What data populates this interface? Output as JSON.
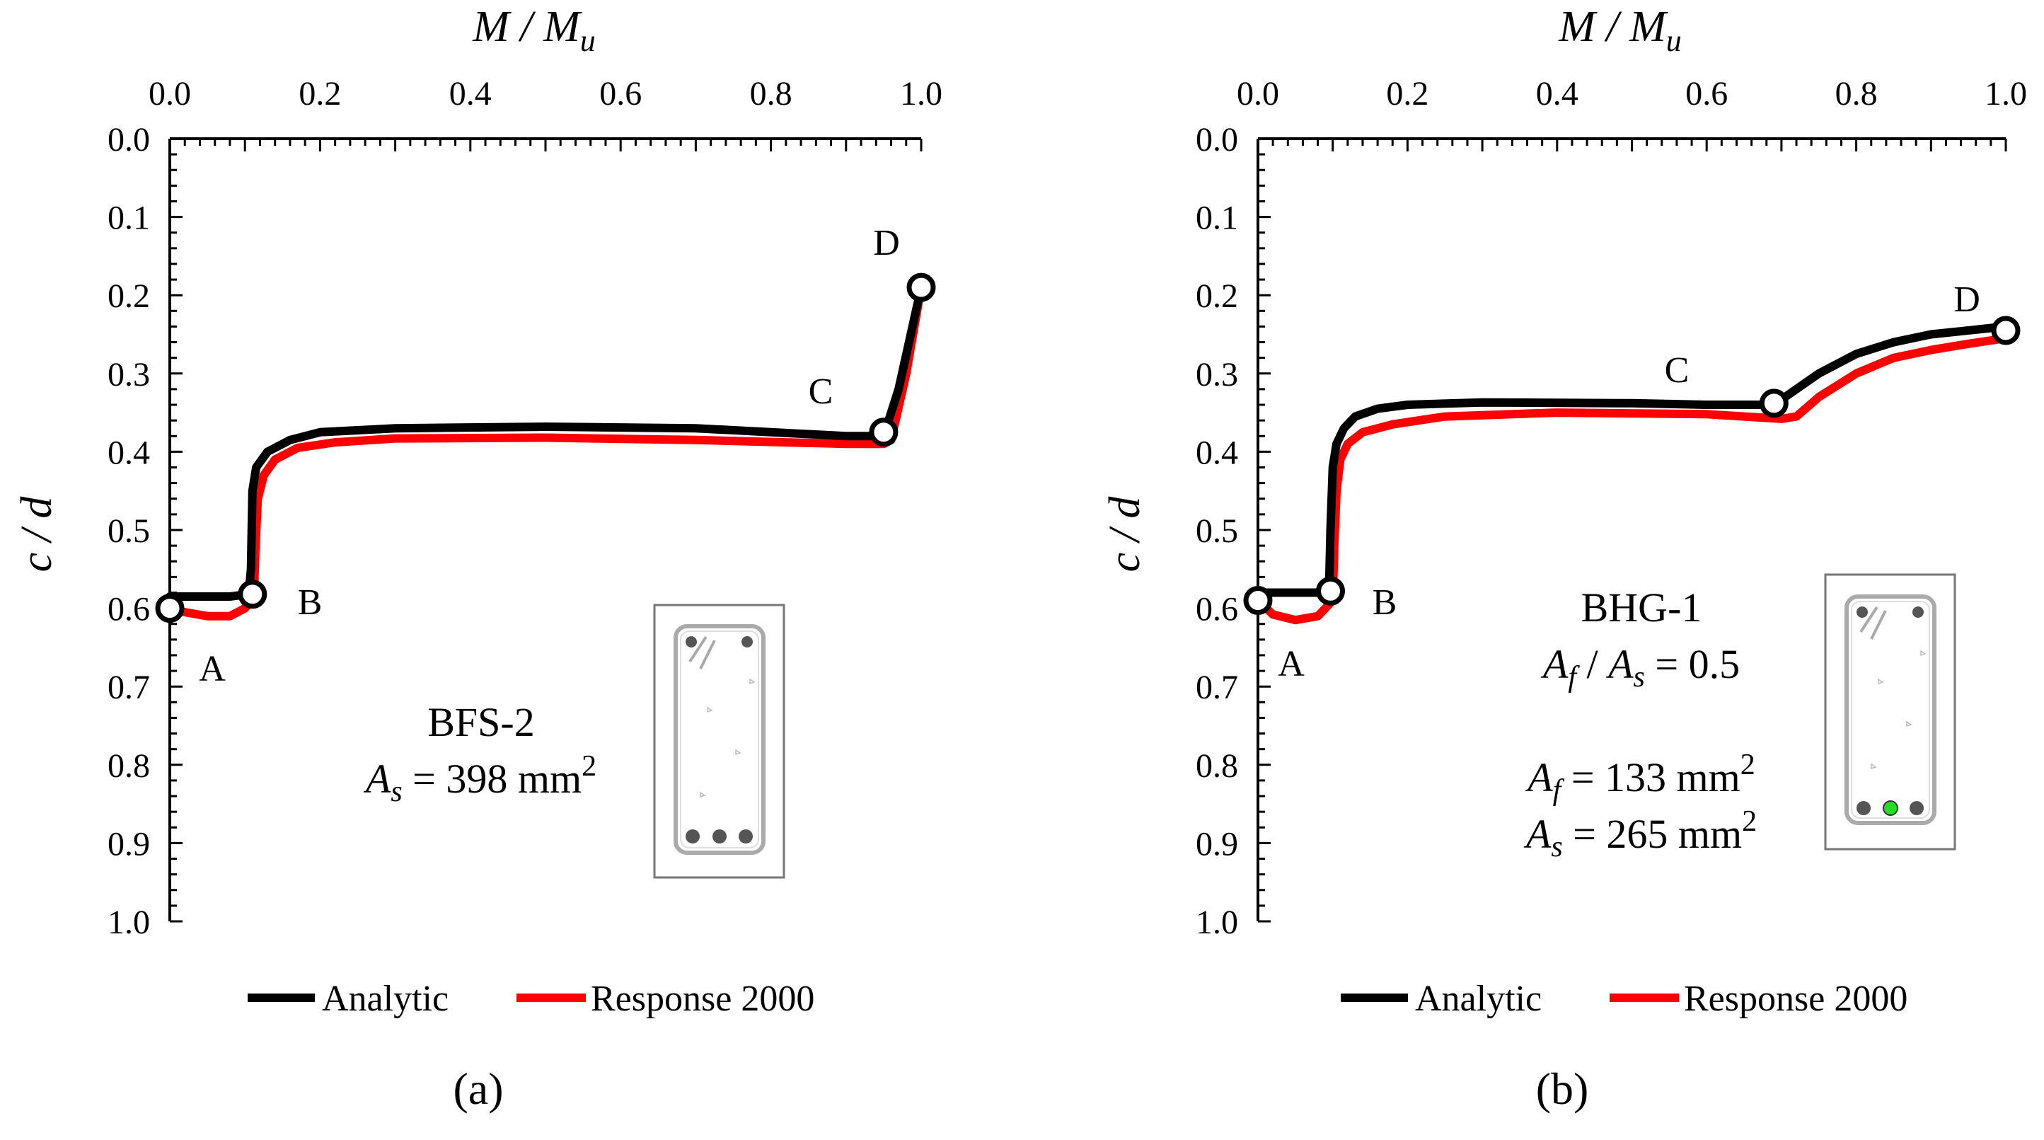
{
  "chart_data": [
    {
      "type": "line",
      "panel_label": "(a)",
      "xlabel": "M / M",
      "xlabel_sub": "u",
      "ylabel": "c / d",
      "xlim": [
        0,
        1
      ],
      "ylim": [
        0,
        1
      ],
      "y_inverted": true,
      "x_axis_position": "top",
      "xticks": [
        "0.0",
        "0.2",
        "0.4",
        "0.6",
        "0.8",
        "1.0"
      ],
      "yticks": [
        "0.0",
        "0.1",
        "0.2",
        "0.3",
        "0.4",
        "0.5",
        "0.6",
        "0.7",
        "0.8",
        "0.9",
        "1.0"
      ],
      "legend_position": "bottom",
      "series": [
        {
          "name": "Analytic",
          "color": "#000000",
          "x": [
            0.0,
            0.0,
            0.04,
            0.08,
            0.105,
            0.108,
            0.11,
            0.115,
            0.13,
            0.16,
            0.2,
            0.3,
            0.5,
            0.7,
            0.9,
            0.95,
            0.97,
            1.0
          ],
          "y": [
            0.6,
            0.585,
            0.585,
            0.585,
            0.582,
            0.55,
            0.45,
            0.42,
            0.4,
            0.385,
            0.375,
            0.37,
            0.368,
            0.37,
            0.38,
            0.38,
            0.32,
            0.19
          ]
        },
        {
          "name": "Response 2000",
          "color": "#ff0000",
          "x": [
            0.0,
            0.02,
            0.05,
            0.08,
            0.1,
            0.112,
            0.114,
            0.117,
            0.125,
            0.14,
            0.17,
            0.22,
            0.3,
            0.5,
            0.7,
            0.9,
            0.95,
            0.96,
            0.98,
            1.0
          ],
          "y": [
            0.6,
            0.605,
            0.61,
            0.61,
            0.6,
            0.585,
            0.52,
            0.46,
            0.43,
            0.41,
            0.395,
            0.388,
            0.383,
            0.382,
            0.385,
            0.39,
            0.39,
            0.385,
            0.3,
            0.19
          ]
        }
      ],
      "points": [
        {
          "label": "A",
          "x": 0.0,
          "y": 0.6
        },
        {
          "label": "B",
          "x": 0.11,
          "y": 0.582
        },
        {
          "label": "C",
          "x": 0.95,
          "y": 0.375
        },
        {
          "label": "D",
          "x": 1.0,
          "y": 0.19
        }
      ],
      "annotation": {
        "specimen": "BFS-2",
        "line1_symbol": "A",
        "line1_sub": "s",
        "line1_value": " = 398 mm",
        "line1_sup": "2"
      }
    },
    {
      "type": "line",
      "panel_label": "(b)",
      "xlabel": "M / M",
      "xlabel_sub": "u",
      "ylabel": "c / d",
      "xlim": [
        0,
        1
      ],
      "ylim": [
        0,
        1
      ],
      "y_inverted": true,
      "x_axis_position": "top",
      "xticks": [
        "0.0",
        "0.2",
        "0.4",
        "0.6",
        "0.8",
        "1.0"
      ],
      "yticks": [
        "0.0",
        "0.1",
        "0.2",
        "0.3",
        "0.4",
        "0.5",
        "0.6",
        "0.7",
        "0.8",
        "0.9",
        "1.0"
      ],
      "legend_position": "bottom",
      "series": [
        {
          "name": "Analytic",
          "color": "#000000",
          "x": [
            0.0,
            0.0,
            0.04,
            0.08,
            0.095,
            0.097,
            0.1,
            0.105,
            0.115,
            0.13,
            0.16,
            0.2,
            0.3,
            0.5,
            0.6,
            0.69,
            0.72,
            0.75,
            0.8,
            0.85,
            0.9,
            1.0
          ],
          "y": [
            0.59,
            0.58,
            0.58,
            0.58,
            0.58,
            0.5,
            0.42,
            0.39,
            0.37,
            0.355,
            0.345,
            0.34,
            0.337,
            0.338,
            0.34,
            0.34,
            0.32,
            0.3,
            0.275,
            0.26,
            0.25,
            0.24
          ]
        },
        {
          "name": "Response 2000",
          "color": "#ff0000",
          "x": [
            0.0,
            0.02,
            0.05,
            0.08,
            0.1,
            0.102,
            0.105,
            0.11,
            0.12,
            0.14,
            0.18,
            0.25,
            0.4,
            0.6,
            0.7,
            0.72,
            0.75,
            0.8,
            0.85,
            0.9,
            0.95,
            1.0
          ],
          "y": [
            0.59,
            0.608,
            0.615,
            0.61,
            0.59,
            0.52,
            0.45,
            0.41,
            0.39,
            0.375,
            0.365,
            0.355,
            0.35,
            0.352,
            0.358,
            0.355,
            0.33,
            0.3,
            0.28,
            0.27,
            0.262,
            0.255
          ]
        }
      ],
      "points": [
        {
          "label": "A",
          "x": 0.0,
          "y": 0.59
        },
        {
          "label": "B",
          "x": 0.097,
          "y": 0.578
        },
        {
          "label": "C",
          "x": 0.69,
          "y": 0.338
        },
        {
          "label": "D",
          "x": 1.0,
          "y": 0.245
        }
      ],
      "annotation": {
        "specimen": "BHG-1",
        "ratio_sym1": "A",
        "ratio_sub1": "f",
        "ratio_mid": " / ",
        "ratio_sym2": "A",
        "ratio_sub2": "s",
        "ratio_value": " = 0.5",
        "line1_symbol": "A",
        "line1_sub": "f",
        "line1_value": " = 133 mm",
        "line1_sup": "2",
        "line2_symbol": "A",
        "line2_sub": "s",
        "line2_value": " = 265 mm",
        "line2_sup": "2"
      }
    }
  ],
  "colors": {
    "analytic": "#000000",
    "response": "#ff0000",
    "frp_bar": "#22dd22",
    "steel_bar": "#555555"
  }
}
